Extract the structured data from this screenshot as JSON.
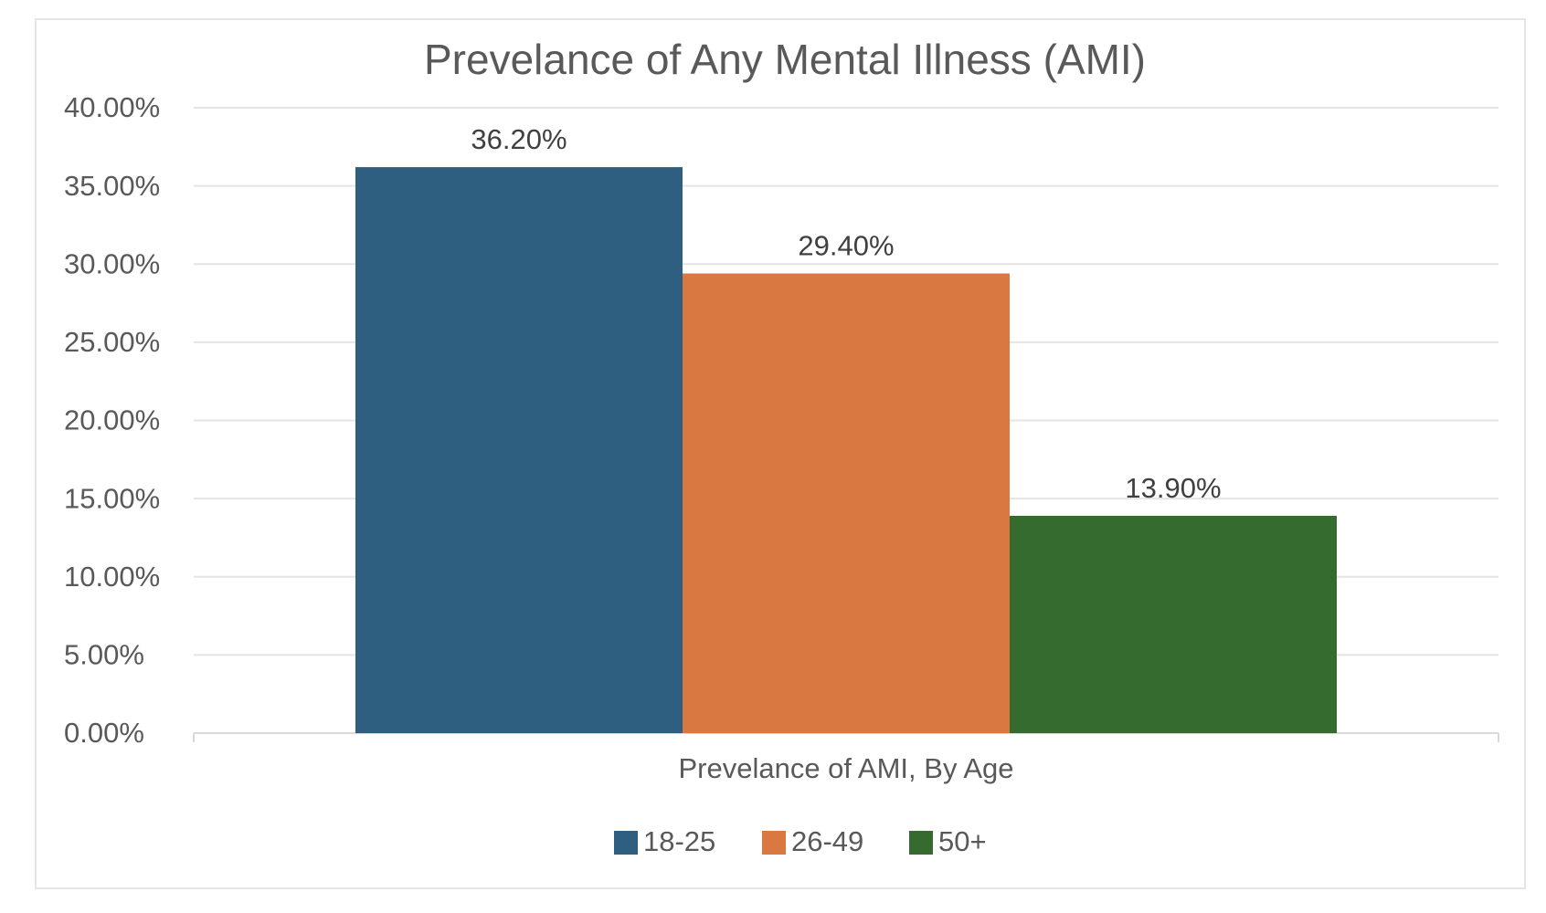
{
  "chart_data": {
    "type": "bar",
    "title": "Prevelance of Any Mental Illness (AMI)",
    "categories": [
      "Prevelance of AMI, By Age"
    ],
    "xlabel": "",
    "ylabel": "",
    "ylim": [
      0,
      40
    ],
    "yticks": [
      "0.00%",
      "5.00%",
      "10.00%",
      "15.00%",
      "20.00%",
      "25.00%",
      "30.00%",
      "35.00%",
      "40.00%"
    ],
    "grid": true,
    "legend_position": "bottom",
    "series": [
      {
        "name": "18-25",
        "values": [
          36.2
        ],
        "label": "36.20%",
        "color": "#2e5f80"
      },
      {
        "name": "26-49",
        "values": [
          29.4
        ],
        "label": "29.40%",
        "color": "#d97841"
      },
      {
        "name": "50+",
        "values": [
          13.9
        ],
        "label": "13.90%",
        "color": "#356b2f"
      }
    ]
  }
}
